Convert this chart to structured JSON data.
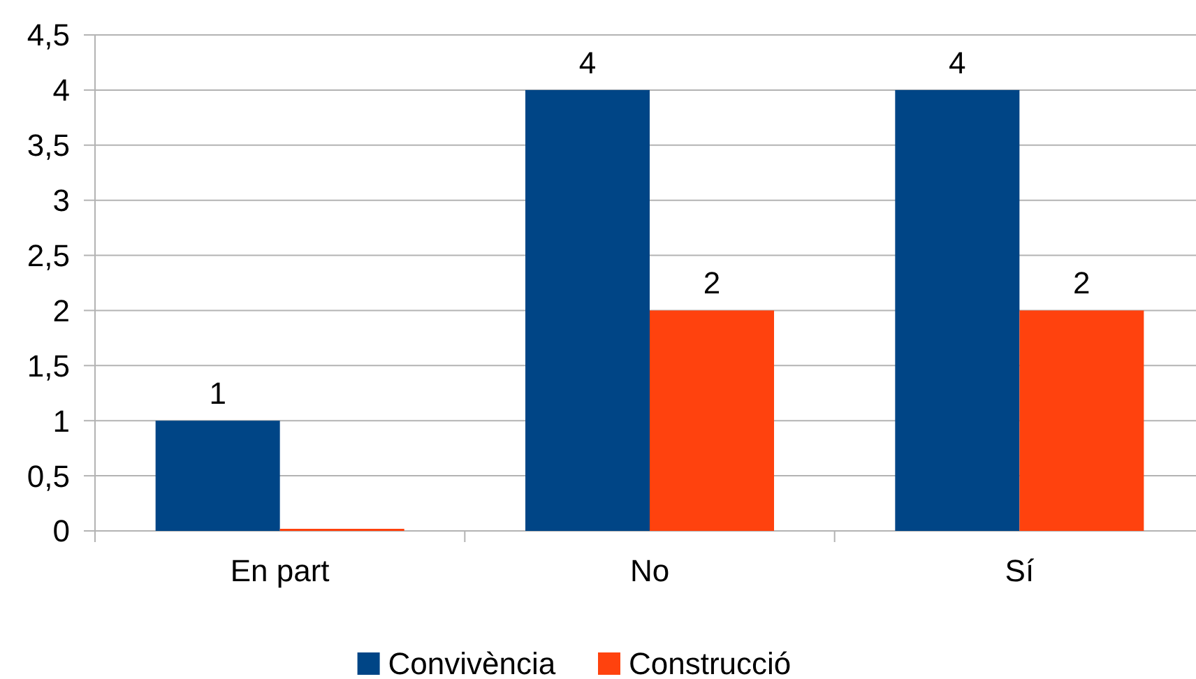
{
  "chart_data": {
    "type": "bar",
    "categories": [
      "En part",
      "No",
      "Sí"
    ],
    "series": [
      {
        "name": "Convivència",
        "color": "#004586",
        "values": [
          1,
          4,
          4
        ],
        "value_labels": [
          "1",
          "4",
          "4"
        ]
      },
      {
        "name": "Construcció",
        "color": "#ff420e",
        "values": [
          0,
          2,
          2
        ],
        "value_labels": [
          null,
          "2",
          "2"
        ]
      }
    ],
    "ylim": [
      0,
      4.5
    ],
    "yticks": [
      {
        "value": 0,
        "label": "0"
      },
      {
        "value": 0.5,
        "label": "0,5"
      },
      {
        "value": 1,
        "label": "1"
      },
      {
        "value": 1.5,
        "label": "1,5"
      },
      {
        "value": 2,
        "label": "2"
      },
      {
        "value": 2.5,
        "label": "2,5"
      },
      {
        "value": 3,
        "label": "3"
      },
      {
        "value": 3.5,
        "label": "3,5"
      },
      {
        "value": 4,
        "label": "4"
      },
      {
        "value": 4.5,
        "label": "4,5"
      }
    ],
    "grid": "y",
    "legend": "bottom"
  }
}
